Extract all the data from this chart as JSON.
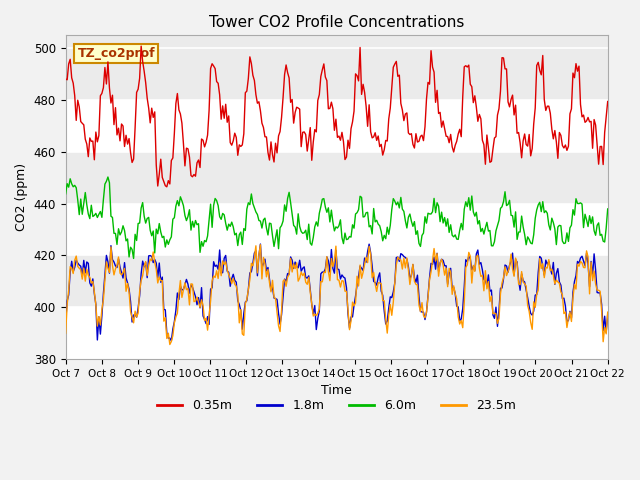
{
  "title": "Tower CO2 Profile Concentrations",
  "ylabel": "CO2 (ppm)",
  "xlabel": "Time",
  "ylim": [
    380,
    505
  ],
  "plot_bg": "#ebebeb",
  "series_colors": [
    "#dd0000",
    "#0000cc",
    "#00bb00",
    "#ff9900"
  ],
  "series_labels": [
    "0.35m",
    "1.8m",
    "6.0m",
    "23.5m"
  ],
  "label_box_text": "TZ_co2prof",
  "tick_labels": [
    "Oct 7",
    "Oct 8",
    "Oct 9",
    "Oct 10",
    "Oct 11",
    "Oct 12",
    "Oct 13",
    "Oct 14",
    "Oct 15",
    "Oct 16",
    "Oct 17",
    "Oct 18",
    "Oct 19",
    "Oct 20",
    "Oct 21",
    "Oct 22"
  ],
  "yticks": [
    380,
    400,
    420,
    440,
    460,
    480,
    500
  ],
  "fig_facecolor": "#f2f2f2"
}
